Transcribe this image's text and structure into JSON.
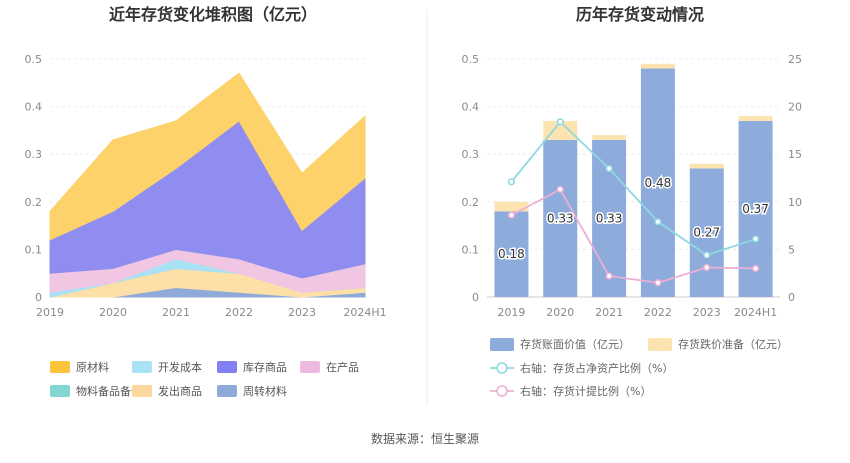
{
  "source": "数据来源：恒生聚源",
  "chart_data": [
    {
      "type": "area",
      "title": "近年存货变化堆积图（亿元）",
      "categories": [
        "2019",
        "2020",
        "2021",
        "2022",
        "2023",
        "2024H1"
      ],
      "ylim": [
        0,
        0.5
      ],
      "yticks": [
        "0",
        "0.1",
        "0.2",
        "0.3",
        "0.4",
        "0.5"
      ],
      "stacked": true,
      "series": [
        {
          "name": "周转材料",
          "color": "#8fa9d8",
          "values": [
            0.0,
            0.0,
            0.02,
            0.01,
            0.0,
            0.01
          ]
        },
        {
          "name": "发出商品",
          "color": "#fde0a8",
          "values": [
            0.0,
            0.03,
            0.04,
            0.04,
            0.01,
            0.01
          ]
        },
        {
          "name": "物料备品备件",
          "color": "#84d6d0",
          "values": [
            0.0,
            0.0,
            0.0,
            0.0,
            0.0,
            0.0
          ]
        },
        {
          "name": "开发成本",
          "color": "#a9e1f5",
          "values": [
            0.01,
            0.0,
            0.02,
            0.0,
            0.0,
            0.0
          ]
        },
        {
          "name": "在产品",
          "color": "#f0c6e2",
          "values": [
            0.04,
            0.03,
            0.02,
            0.03,
            0.03,
            0.05
          ]
        },
        {
          "name": "库存商品",
          "color": "#8f8df0",
          "values": [
            0.07,
            0.12,
            0.17,
            0.29,
            0.1,
            0.18
          ]
        },
        {
          "name": "原材料",
          "color": "#fdd26a",
          "values": [
            0.06,
            0.15,
            0.1,
            0.1,
            0.12,
            0.13
          ]
        }
      ],
      "legend": [
        {
          "name": "原材料",
          "color": "#fcc43d"
        },
        {
          "name": "开发成本",
          "color": "#a9e1f5"
        },
        {
          "name": "库存商品",
          "color": "#8380f2"
        },
        {
          "name": "在产品",
          "color": "#eebadf"
        },
        {
          "name": "物料备品备件",
          "color": "#84d6d0"
        },
        {
          "name": "发出商品",
          "color": "#fdd89e"
        },
        {
          "name": "周转材料",
          "color": "#8fa9d8"
        }
      ],
      "legend_position": "bottom"
    },
    {
      "type": "bar",
      "title": "历年存货变动情况",
      "categories": [
        "2019",
        "2020",
        "2021",
        "2022",
        "2023",
        "2024H1"
      ],
      "ylim_left": [
        0,
        0.5
      ],
      "yticks_left": [
        "0",
        "0.1",
        "0.2",
        "0.3",
        "0.4",
        "0.5"
      ],
      "ylim_right": [
        0,
        25
      ],
      "yticks_right": [
        "0",
        "5",
        "10",
        "15",
        "20",
        "25"
      ],
      "stacked": true,
      "series": [
        {
          "name": "存货账面价值（亿元）",
          "color": "#8dacdc",
          "axis": "left",
          "values": [
            0.18,
            0.33,
            0.33,
            0.48,
            0.27,
            0.37
          ],
          "labels": [
            "0.18",
            "0.33",
            "0.33",
            "0.48",
            "0.27",
            "0.37"
          ]
        },
        {
          "name": "存货跌价准备（亿元）",
          "color": "#fde3b0",
          "axis": "left",
          "values": [
            0.02,
            0.04,
            0.01,
            0.01,
            0.01,
            0.01
          ]
        }
      ],
      "line_series": [
        {
          "name": "右轴：存货占净资产比例（%）",
          "color": "#8fd8e2",
          "axis": "right",
          "values": [
            12.1,
            18.4,
            13.5,
            7.9,
            4.4,
            6.1
          ]
        },
        {
          "name": "右轴：存货计提比例（%）",
          "color": "#eeaed6",
          "axis": "right",
          "values": [
            8.6,
            11.3,
            2.2,
            1.5,
            3.1,
            3.0
          ]
        }
      ],
      "legend_position": "bottom"
    }
  ]
}
